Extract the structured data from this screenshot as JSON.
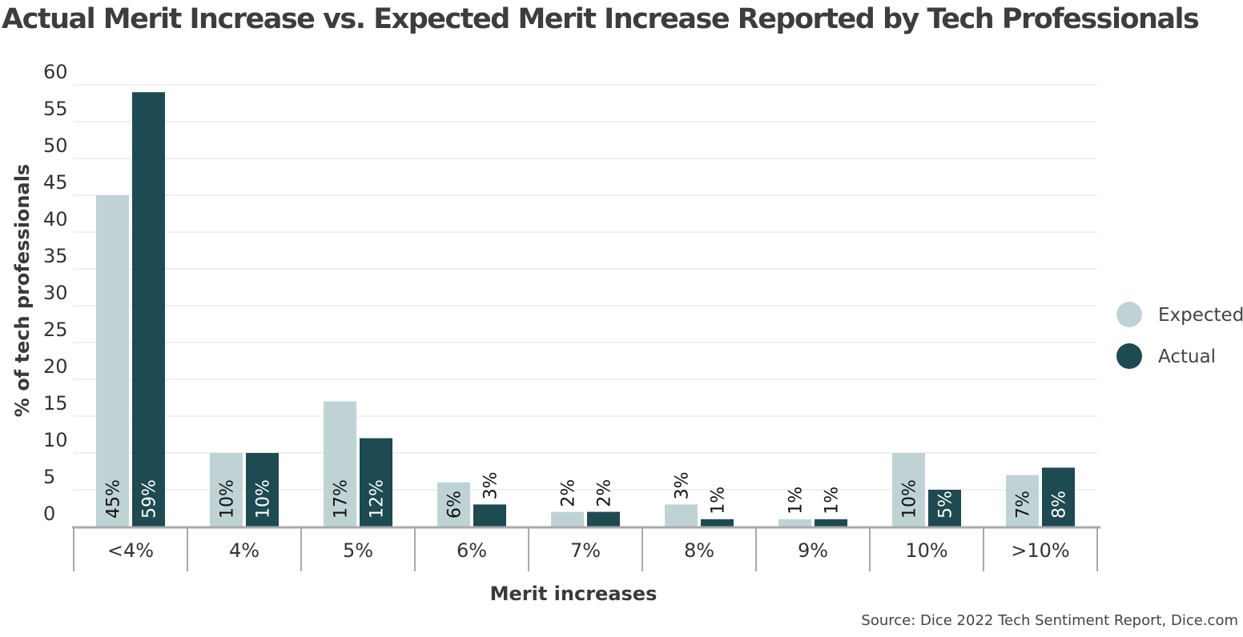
{
  "chart_data": {
    "type": "bar",
    "title": "Actual Merit Increase vs. Expected Merit Increase Reported by Tech Professionals",
    "xlabel": "Merit increases",
    "ylabel": "% of tech professionals",
    "categories": [
      "<4%",
      "4%",
      "5%",
      "6%",
      "7%",
      "8%",
      "9%",
      "10%",
      ">10%"
    ],
    "series": [
      {
        "name": "Expected",
        "color": "#bfd3d5",
        "values": [
          45,
          10,
          17,
          6,
          2,
          3,
          1,
          10,
          7
        ],
        "labels": [
          "45%",
          "10%",
          "17%",
          "6%",
          "2%",
          "3%",
          "1%",
          "10%",
          "7%"
        ]
      },
      {
        "name": "Actual",
        "color": "#1e4a52",
        "values": [
          59,
          10,
          12,
          3,
          2,
          1,
          1,
          5,
          8
        ],
        "labels": [
          "59%",
          "10%",
          "12%",
          "3%",
          "2%",
          "1%",
          "1%",
          "5%",
          "8%"
        ]
      }
    ],
    "ylim": [
      0,
      60
    ],
    "yticks": [
      0,
      5,
      10,
      15,
      20,
      25,
      30,
      35,
      40,
      45,
      50,
      55,
      60
    ],
    "grid": true,
    "legend_position": "right",
    "source": "Source: Dice 2022 Tech Sentiment Report, Dice.com"
  }
}
